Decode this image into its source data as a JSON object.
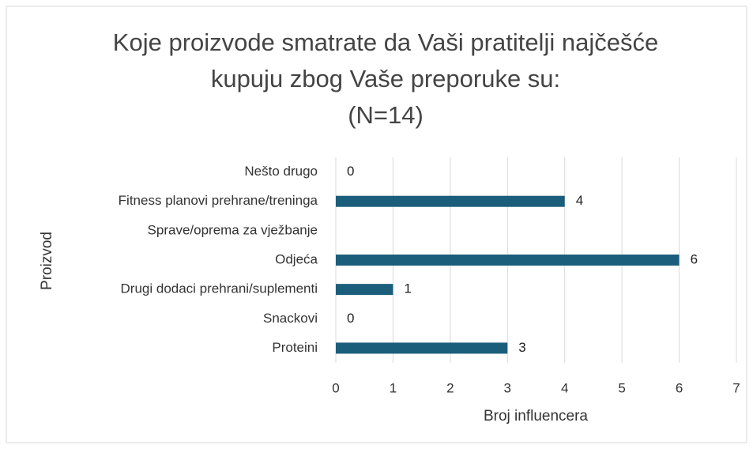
{
  "chart_data": {
    "type": "bar",
    "orientation": "horizontal",
    "title": [
      "Koje proizvode smatrate da Vaši pratitelji najčešće",
      "kupuju zbog Vaše preporuke su:",
      "(N=14)"
    ],
    "x_label": "Broj influencera",
    "y_label": "Proizvod",
    "categories": [
      "Nešto drugo",
      "Fitness planovi prehrane/treninga",
      "Sprave/oprema za vježbanje",
      "Odjeća",
      "Drugi dodaci prehrani/suplementi",
      "Snackovi",
      "Proteini"
    ],
    "values": [
      0,
      4,
      null,
      6,
      1,
      0,
      3
    ],
    "color": "#1b5e7b",
    "xlim": [
      0,
      7
    ],
    "xticks": [
      0,
      1,
      2,
      3,
      4,
      5,
      6,
      7
    ],
    "grid": true
  }
}
